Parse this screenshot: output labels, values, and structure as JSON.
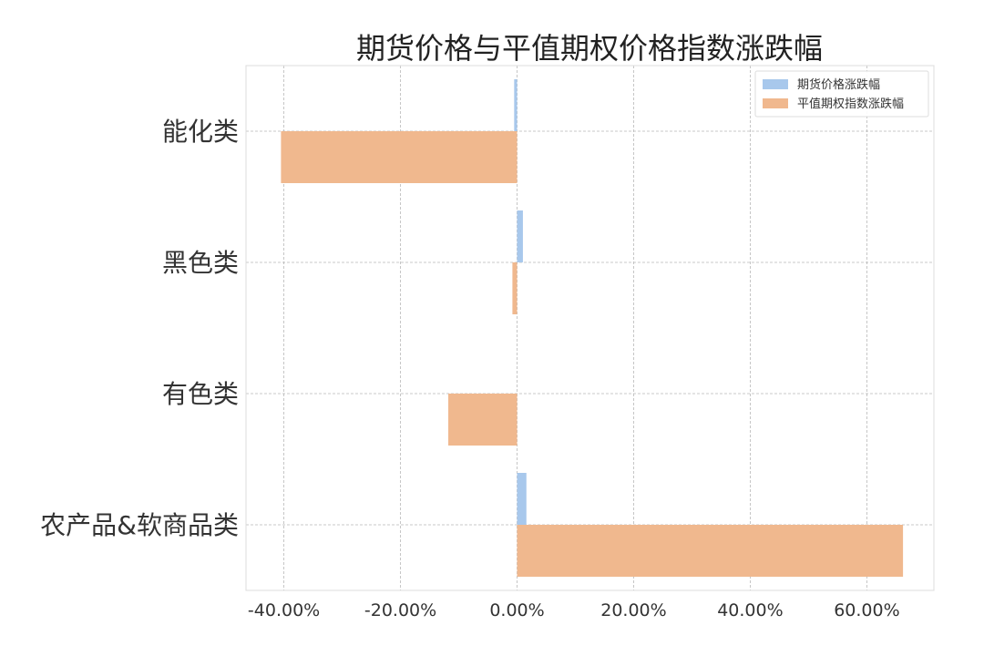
{
  "chart_data": {
    "type": "bar",
    "orientation": "horizontal",
    "title": "期货价格与平值期权价格指数涨跌幅",
    "xlabel": "",
    "ylabel": "",
    "categories": [
      "能化类",
      "黑色类",
      "有色类",
      "农产品&软商品类"
    ],
    "series": [
      {
        "name": "期货价格涨跌幅",
        "color": "#a8c8ec",
        "values": [
          -0.5,
          1.0,
          0.0,
          1.6
        ]
      },
      {
        "name": "平值期权指数涨跌幅",
        "color": "#f0b88e",
        "values": [
          -40.5,
          -0.8,
          -11.8,
          66.2
        ]
      }
    ],
    "xlim": [
      -46.5,
      71.5
    ],
    "xticks": [
      -40,
      -20,
      0,
      20,
      40,
      60
    ],
    "xtick_labels": [
      "-40.00%",
      "-20.00%",
      "0.00%",
      "20.00%",
      "40.00%",
      "60.00%"
    ],
    "grid": true,
    "legend_position": "top-right"
  }
}
